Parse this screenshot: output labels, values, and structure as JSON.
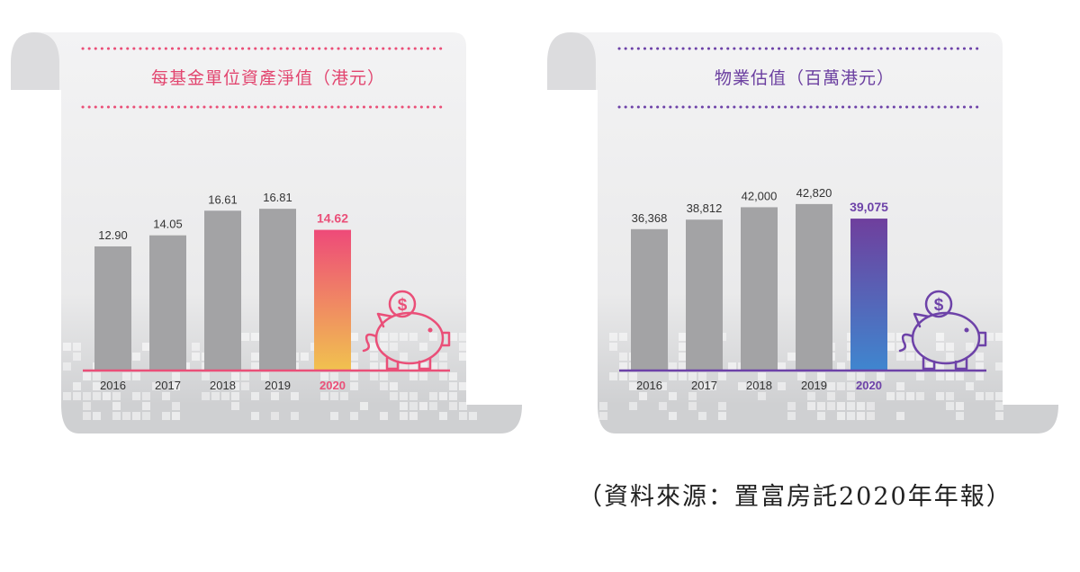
{
  "chart_data": [
    {
      "type": "bar",
      "title": "每基金單位資產淨值（港元）",
      "categories": [
        "2016",
        "2017",
        "2018",
        "2019",
        "2020"
      ],
      "values": [
        12.9,
        14.05,
        16.61,
        16.81,
        14.62
      ],
      "value_labels": [
        "12.90",
        "14.05",
        "16.61",
        "16.81",
        "14.62"
      ],
      "ylim": [
        0,
        20
      ],
      "grid": false,
      "colors": {
        "bar": "#a3a3a5",
        "highlight_top": "#ee4a79",
        "highlight_bottom": "#f1c24f",
        "accent": "#ea4f78"
      }
    },
    {
      "type": "bar",
      "title": "物業估值（百萬港元）",
      "categories": [
        "2016",
        "2017",
        "2018",
        "2019",
        "2020"
      ],
      "values": [
        36368,
        38812,
        42000,
        42820,
        39075
      ],
      "value_labels": [
        "36,368",
        "38,812",
        "42,000",
        "42,820",
        "39,075"
      ],
      "ylim": [
        0,
        49500
      ],
      "grid": false,
      "colors": {
        "bar": "#a3a3a5",
        "highlight_top": "#6f3f9d",
        "highlight_bottom": "#3f86cf",
        "accent": "#6d42a8"
      }
    }
  ],
  "icons": [
    "piggy-bank-icon",
    "dollar-coin-icon"
  ],
  "source_note": "（資料來源：置富房託2020年年報）"
}
